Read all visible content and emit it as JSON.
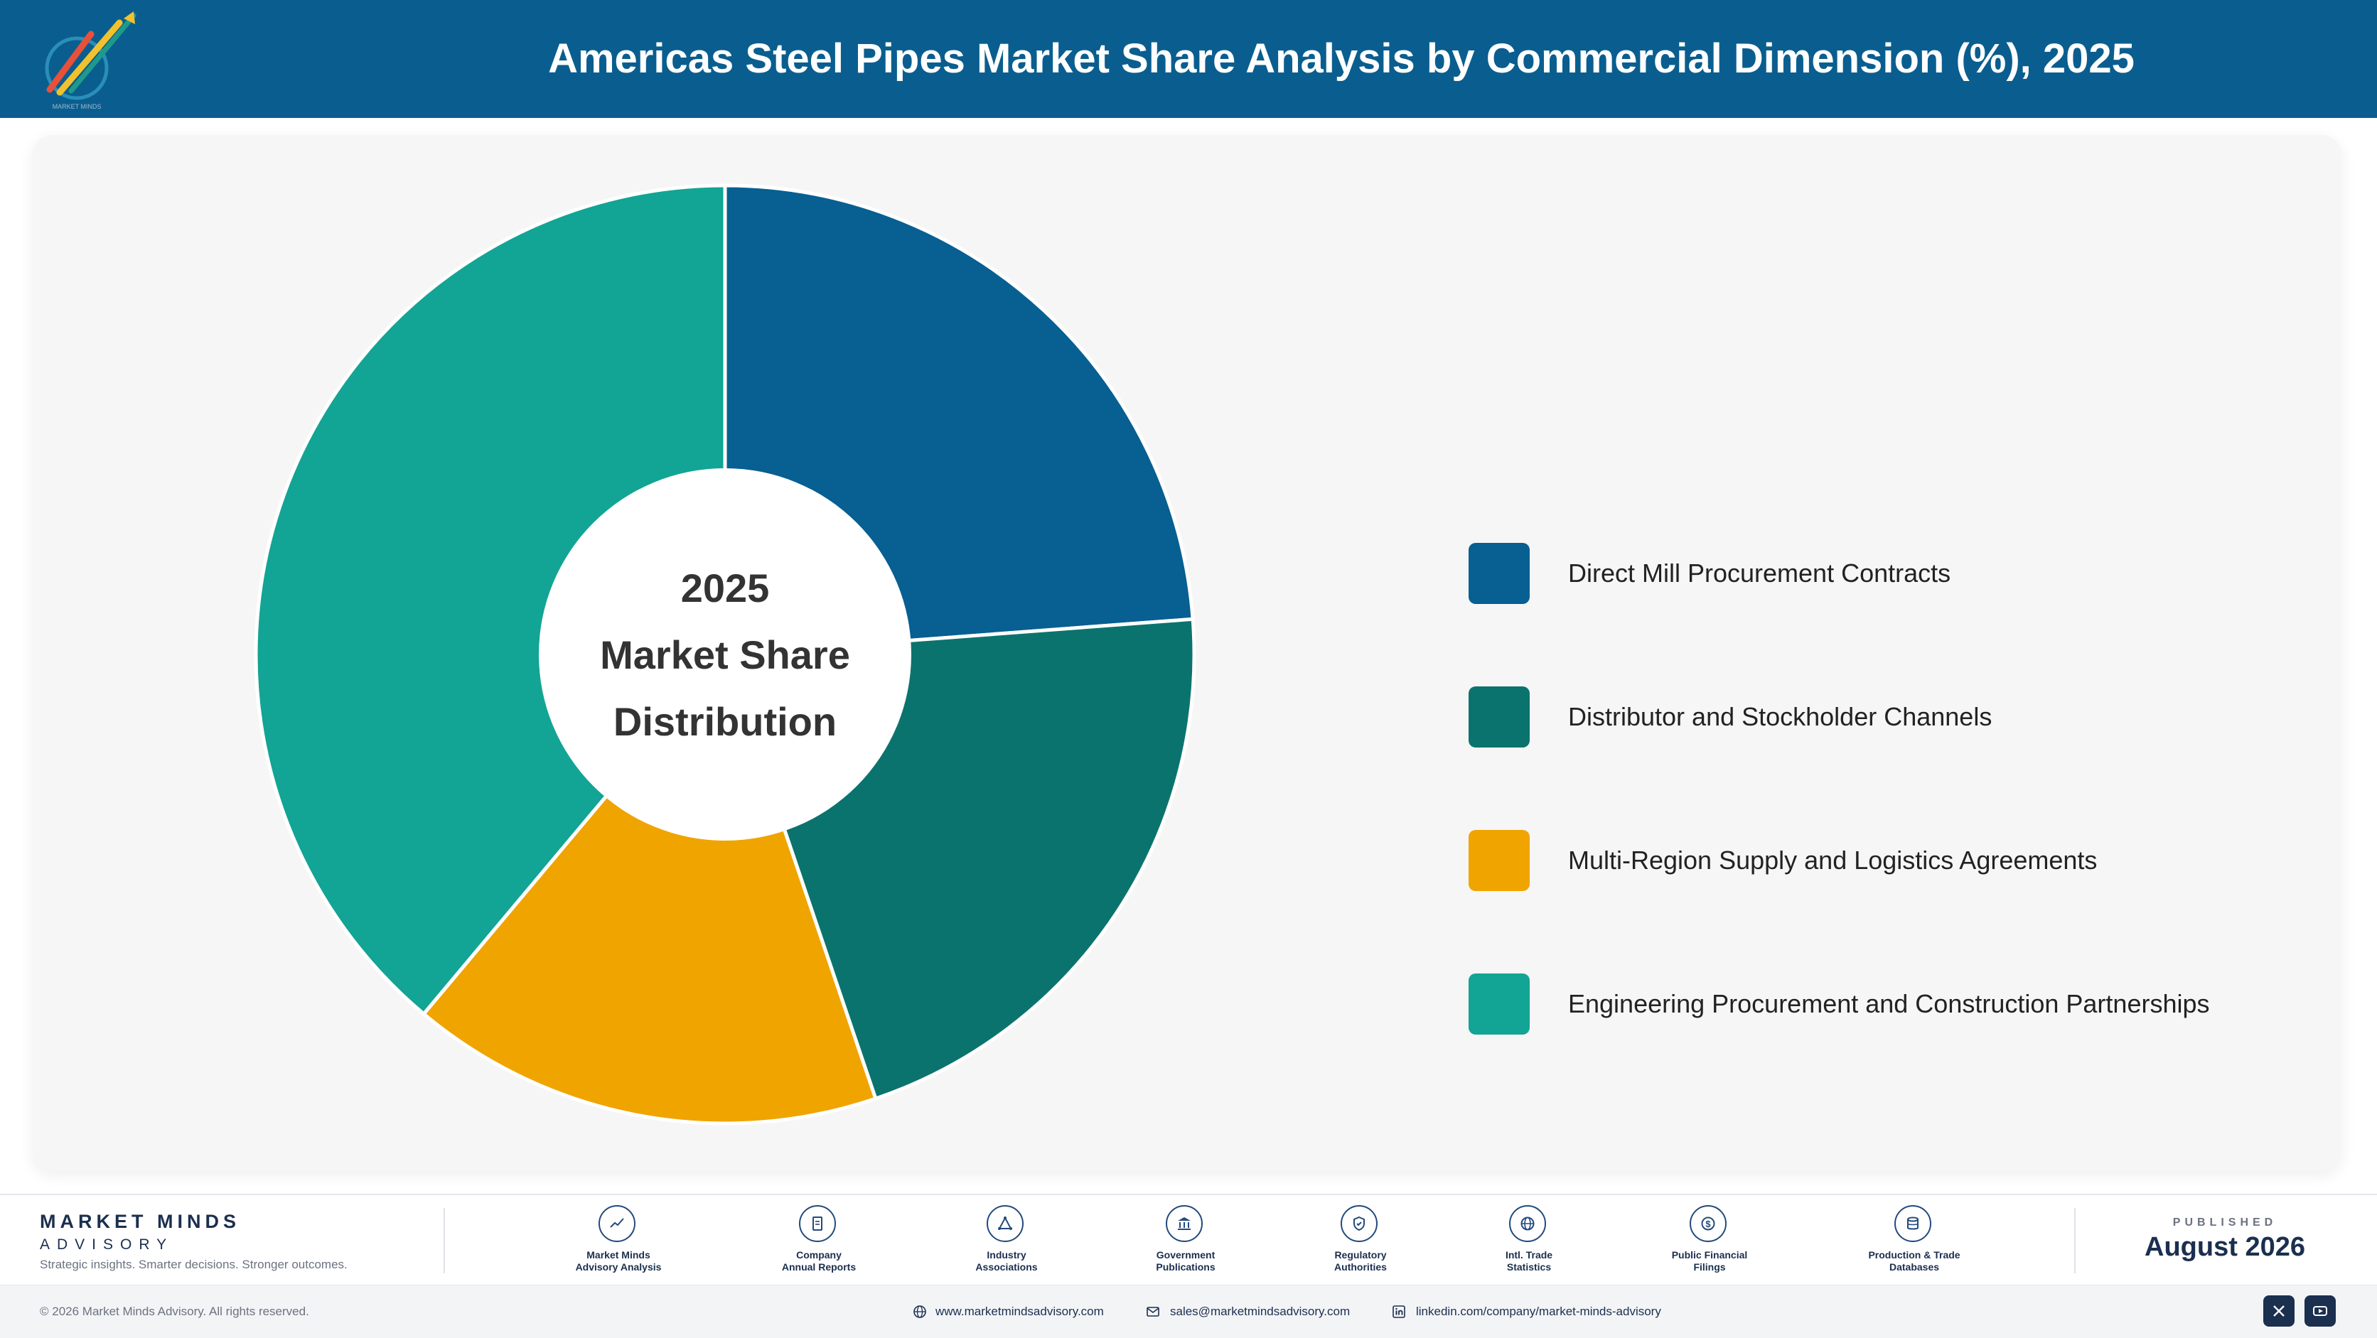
{
  "header": {
    "title": "Americas Steel Pipes Market Share Analysis by Commercial Dimension (%), 2025",
    "logo_icon": "market-minds-logo"
  },
  "chart_data": {
    "type": "pie",
    "style": "donut",
    "center_label": [
      "2025",
      "Market Share",
      "Distribution"
    ],
    "categories": [
      "Direct Mill Procurement Contracts",
      "Distributor and Stockholder Channels",
      "Multi-Region Supply and Logistics Agreements",
      "Engineering Procurement and Construction Partnerships"
    ],
    "values": [
      23.8,
      21.0,
      16.3,
      38.9
    ],
    "colors": [
      "#075f92",
      "#0b736d",
      "#f0a400",
      "#12a494"
    ],
    "legend_position": "right"
  },
  "footer": {
    "brand_name": "MARKET MINDS",
    "brand_sub": "ADVISORY",
    "tagline": "Strategic insights. Smarter decisions. Stronger outcomes.",
    "sources": [
      {
        "line1": "Market Minds",
        "line2": "Advisory Analysis",
        "icon": "trend-chart-icon"
      },
      {
        "line1": "Company",
        "line2": "Annual Reports",
        "icon": "document-icon"
      },
      {
        "line1": "Industry",
        "line2": "Associations",
        "icon": "network-icon"
      },
      {
        "line1": "Government",
        "line2": "Publications",
        "icon": "government-building-icon"
      },
      {
        "line1": "Regulatory",
        "line2": "Authorities",
        "icon": "shield-check-icon"
      },
      {
        "line1": "Intl. Trade",
        "line2": "Statistics",
        "icon": "globe-icon"
      },
      {
        "line1": "Public Financial",
        "line2": "Filings",
        "icon": "dollar-coin-icon"
      },
      {
        "line1": "Production & Trade",
        "line2": "Databases",
        "icon": "database-icon"
      }
    ],
    "published_label": "PUBLISHED",
    "published_date": "August 2026",
    "copyright": "© 2026 Market Minds Advisory. All rights reserved.",
    "website": "www.marketmindsadvisory.com",
    "email": "sales@marketmindsadvisory.com",
    "linkedin": "linkedin.com/company/market-minds-advisory"
  }
}
